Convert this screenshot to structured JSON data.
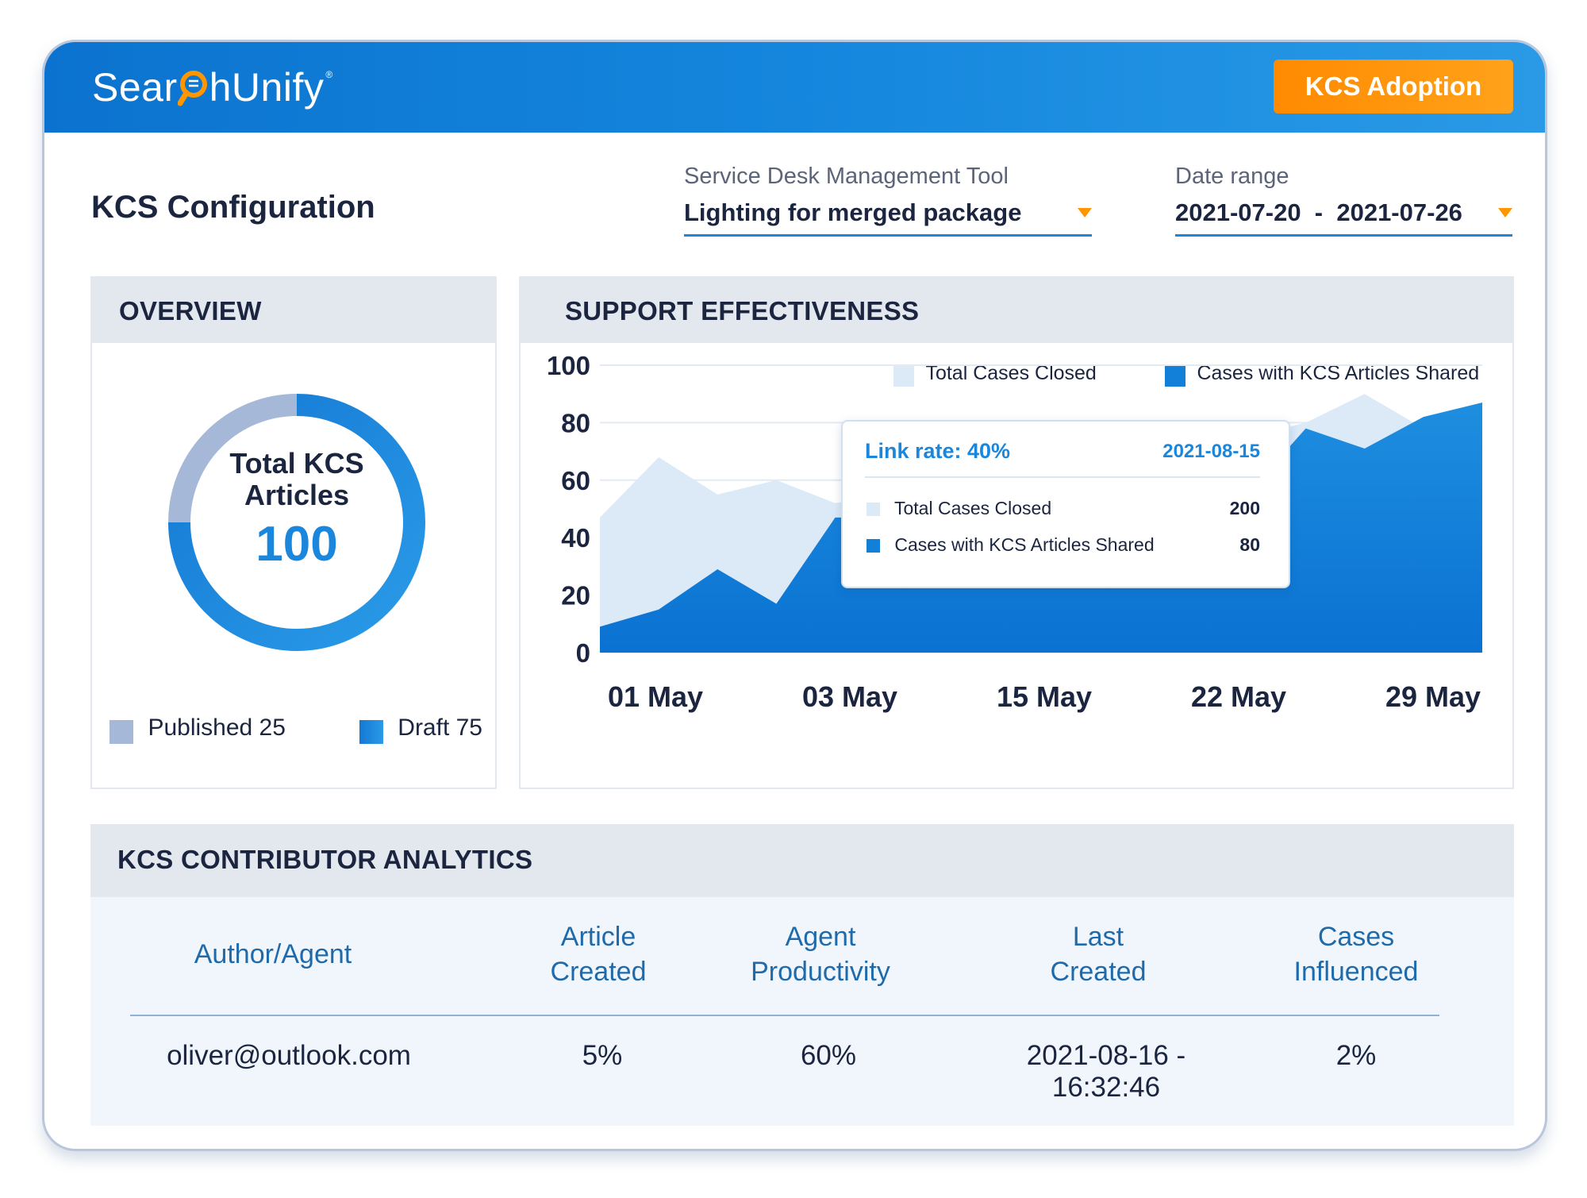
{
  "header": {
    "logo_text_a": "Sear",
    "logo_text_b": "hUnify",
    "logo_mark": "®",
    "adoption_button": "KCS Adoption"
  },
  "page": {
    "title": "KCS Configuration"
  },
  "filters": {
    "tool_label": "Service Desk Management Tool",
    "tool_value": "Lighting for merged package",
    "date_label": "Date range",
    "date_value": "2021-07-20  -  2021-07-26"
  },
  "overview": {
    "heading": "OVERVIEW",
    "donut_label_line1": "Total KCS",
    "donut_label_line2": "Articles",
    "total": "100",
    "legend": [
      {
        "label": "Published 25",
        "color": "#a6b8d8"
      },
      {
        "label": "Draft 75",
        "color": "#1a86dc"
      }
    ],
    "chart_data": {
      "type": "pie",
      "categories": [
        "Published",
        "Draft"
      ],
      "values": [
        25,
        75
      ]
    }
  },
  "support": {
    "heading": "SUPPORT EFFECTIVENESS",
    "legend": [
      {
        "label": "Total Cases Closed",
        "color": "#dceaf8"
      },
      {
        "label": "Cases with KCS Articles Shared",
        "color": "#1280d8"
      }
    ],
    "chart_data": {
      "type": "area",
      "x_tick_labels": [
        "01 May",
        "03 May",
        "15 May",
        "22 May",
        "29 May"
      ],
      "y_tick_labels": [
        "100",
        "80",
        "60",
        "40",
        "20",
        "0"
      ],
      "ylim": [
        0,
        100
      ],
      "grid": true,
      "series": [
        {
          "name": "Total Cases Closed",
          "values": [
            47,
            68,
            55,
            60,
            52,
            55,
            65,
            50,
            62,
            52,
            65,
            75,
            80,
            90,
            78,
            85
          ]
        },
        {
          "name": "Cases with KCS Articles Shared",
          "values": [
            9,
            15,
            29,
            17,
            47,
            47,
            45,
            50,
            45,
            47,
            50,
            55,
            78,
            71,
            82,
            87
          ]
        }
      ]
    },
    "tooltip": {
      "title": "Link rate: 40%",
      "date": "2021-08-15",
      "rows": [
        {
          "label": "Total Cases Closed",
          "value": "200",
          "color": "#dceaf8"
        },
        {
          "label": "Cases with KCS Articles Shared",
          "value": "80",
          "color": "#1280d8"
        }
      ]
    }
  },
  "contributors": {
    "heading": "KCS CONTRIBUTOR ANALYTICS",
    "columns": [
      {
        "line1": "Author/Agent",
        "line2": ""
      },
      {
        "line1": "Article",
        "line2": "Created"
      },
      {
        "line1": "Agent",
        "line2": "Productivity"
      },
      {
        "line1": "Last",
        "line2": "Created"
      },
      {
        "line1": "Cases",
        "line2": "Influenced"
      }
    ],
    "rows": [
      [
        "oliver@outlook.com",
        "5%",
        "60%",
        "2021-08-16 - 16:32:46",
        "2%"
      ]
    ]
  }
}
